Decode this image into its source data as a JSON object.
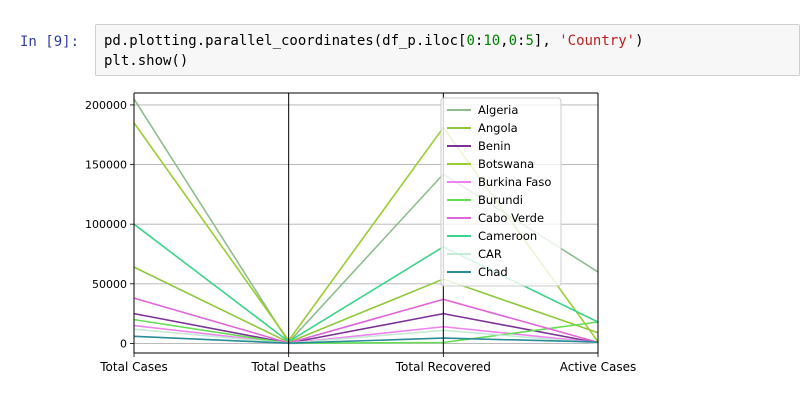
{
  "cell": {
    "prompt": "In [9]:",
    "code_parts": {
      "line1_a": "pd.plotting.parallel_coordinates(df_p.iloc[",
      "num0": "0",
      "colon1": ":",
      "num10": "10",
      "comma": ",",
      "num0b": "0",
      "colon2": ":",
      "num5": "5",
      "line1_b": "], ",
      "string": "'Country'",
      "line1_c": ")",
      "line2": "plt.show()"
    }
  },
  "chart_data": {
    "type": "line",
    "subtype": "parallel_coordinates",
    "categories": [
      "Total Cases",
      "Total Deaths",
      "Total Recovered",
      "Active Cases"
    ],
    "ylim": [
      -8000,
      210000
    ],
    "yticks": [
      0,
      50000,
      100000,
      150000,
      200000
    ],
    "ytick_labels": [
      "0",
      "50000",
      "100000",
      "150000",
      "200000"
    ],
    "grid": true,
    "legend_position": "top-right",
    "series": [
      {
        "name": "Algeria",
        "color": "#8fbc8f",
        "values": [
          205000,
          1000,
          142000,
          60000
        ]
      },
      {
        "name": "Angola",
        "color": "#8fc83c",
        "values": [
          64000,
          900,
          54000,
          9000
        ]
      },
      {
        "name": "Benin",
        "color": "#7b3294",
        "values": [
          25000,
          300,
          25000,
          500
        ]
      },
      {
        "name": "Botswana",
        "color": "#9acd32",
        "values": [
          185000,
          2500,
          181000,
          1500
        ]
      },
      {
        "name": "Burkina Faso",
        "color": "#ee82ee",
        "values": [
          15000,
          200,
          14000,
          800
        ]
      },
      {
        "name": "Burundi",
        "color": "#66dd55",
        "values": [
          20000,
          100,
          800,
          18000
        ]
      },
      {
        "name": "Cabo Verde",
        "color": "#e066d6",
        "values": [
          38000,
          400,
          37000,
          900
        ]
      },
      {
        "name": "Cameroon",
        "color": "#3cd38a",
        "values": [
          100000,
          1600,
          81000,
          18000
        ]
      },
      {
        "name": "CAR",
        "color": "#c5ead5",
        "values": [
          12000,
          120,
          11000,
          300
        ]
      },
      {
        "name": "Chad",
        "color": "#2a8c96",
        "values": [
          6000,
          200,
          4500,
          1200
        ]
      }
    ]
  }
}
